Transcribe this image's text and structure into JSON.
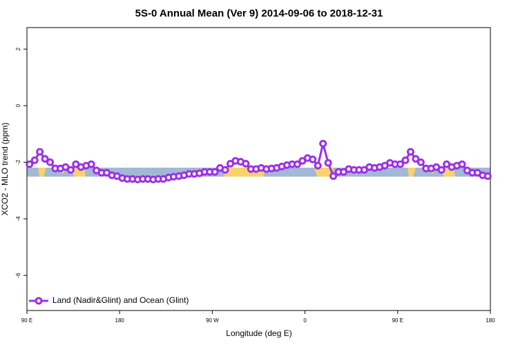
{
  "chart_data": {
    "type": "line",
    "title": "5S-0 Annual Mean (Ver 9)   2014-09-06 to 2018-12-31",
    "x_label": "Longitude (deg E)",
    "y_label": "XCO2 - MLO trend (ppm)",
    "x": [
      92.5,
      97.5,
      102.5,
      107.5,
      112.5,
      117.5,
      122.5,
      127.5,
      132.5,
      137.5,
      142.5,
      147.5,
      152.5,
      157.5,
      162.5,
      167.5,
      172.5,
      177.5,
      182.5,
      187.5,
      192.5,
      197.5,
      202.5,
      207.5,
      212.5,
      217.5,
      222.5,
      227.5,
      232.5,
      237.5,
      242.5,
      247.5,
      252.5,
      257.5,
      262.5,
      267.5,
      272.5,
      277.5,
      282.5,
      287.5,
      292.5,
      297.5,
      302.5,
      307.5,
      312.5,
      317.5,
      322.5,
      327.5,
      332.5,
      337.5,
      342.5,
      347.5,
      352.5,
      357.5,
      362.5,
      367.5,
      372.5,
      377.5,
      382.5,
      387.5,
      392.5,
      397.5,
      402.5,
      407.5,
      412.5,
      417.5,
      422.5,
      427.5,
      432.5,
      437.5,
      442.5,
      447.5,
      452.5,
      457.5,
      462.5,
      467.5,
      472.5,
      477.5,
      482.5,
      487.5,
      492.5,
      497.5,
      502.5,
      507.5,
      512.5,
      517.5,
      522.5,
      527.5,
      532.5,
      537.5
    ],
    "series": [
      {
        "name": "Land (Nadir&Glint) and Ocean (Glint)",
        "color": "#9b30e8",
        "values": [
          -2.07,
          -1.93,
          -1.63,
          -1.88,
          -2.0,
          -2.22,
          -2.22,
          -2.17,
          -2.27,
          -2.07,
          -2.17,
          -2.12,
          -2.07,
          -2.29,
          -2.37,
          -2.37,
          -2.46,
          -2.49,
          -2.56,
          -2.59,
          -2.59,
          -2.61,
          -2.59,
          -2.59,
          -2.61,
          -2.59,
          -2.59,
          -2.54,
          -2.51,
          -2.49,
          -2.46,
          -2.41,
          -2.41,
          -2.39,
          -2.34,
          -2.34,
          -2.34,
          -2.2,
          -2.27,
          -2.05,
          -1.95,
          -1.98,
          -2.05,
          -2.24,
          -2.24,
          -2.2,
          -2.24,
          -2.22,
          -2.2,
          -2.15,
          -2.1,
          -2.07,
          -2.07,
          -1.95,
          -1.85,
          -1.9,
          -2.12,
          -1.34,
          -2.02,
          -2.49,
          -2.34,
          -2.34,
          -2.24,
          -2.27,
          -2.27,
          -2.27,
          -2.17,
          -2.2,
          -2.17,
          -2.12,
          -2.02,
          -2.07,
          -2.07,
          -1.93,
          -1.63,
          -1.88,
          -2.0,
          -2.22,
          -2.22,
          -2.17,
          -2.27,
          -2.07,
          -2.17,
          -2.12,
          -2.07,
          -2.29,
          -2.37,
          -2.37,
          -2.46,
          -2.49
        ]
      }
    ],
    "xlim": [
      90,
      540
    ],
    "xticks": [
      {
        "value": 90,
        "label": "90 E"
      },
      180,
      {
        "value": 270,
        "label": "90 W"
      },
      {
        "value": 360,
        "label": "0"
      },
      {
        "value": 450,
        "label": "90 E"
      },
      {
        "value": 540,
        "label": "180"
      }
    ],
    "ylim": [
      -7.24,
      2.76
    ],
    "yticks": [
      -6,
      -4,
      -2,
      0,
      2
    ],
    "legend": "lower left"
  }
}
